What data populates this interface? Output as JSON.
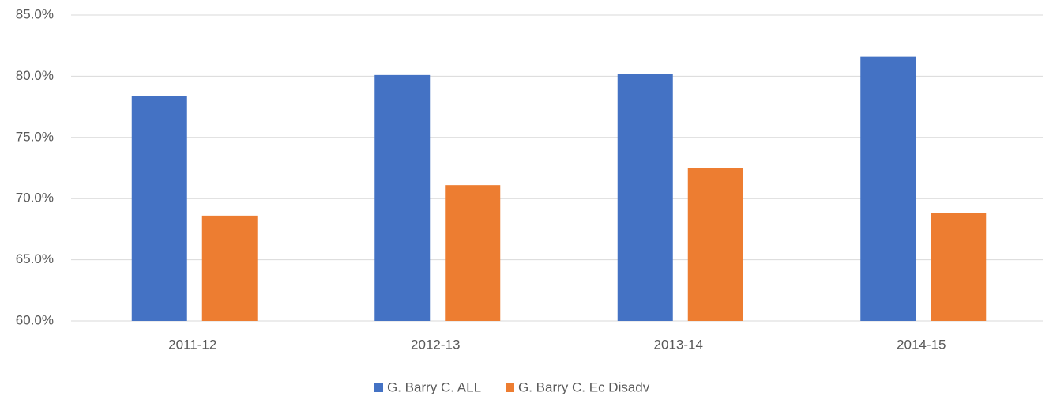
{
  "chart_data": {
    "type": "bar",
    "categories": [
      "2011-12",
      "2012-13",
      "2013-14",
      "2014-15"
    ],
    "series": [
      {
        "name": "G. Barry C. ALL",
        "color": "#4472c4",
        "values": [
          78.4,
          80.1,
          80.2,
          81.6
        ]
      },
      {
        "name": "G. Barry C. Ec Disadv",
        "color": "#ed7d31",
        "values": [
          68.6,
          71.1,
          72.5,
          68.8
        ]
      }
    ],
    "ylim": [
      60,
      85
    ],
    "yticks": [
      {
        "value": 60,
        "label": "60.0%"
      },
      {
        "value": 65,
        "label": "65.0%"
      },
      {
        "value": 70,
        "label": "70.0%"
      },
      {
        "value": 75,
        "label": "75.0%"
      },
      {
        "value": 80,
        "label": "80.0%"
      },
      {
        "value": 85,
        "label": "85.0%"
      }
    ],
    "grid": true,
    "legend": "bottom"
  }
}
